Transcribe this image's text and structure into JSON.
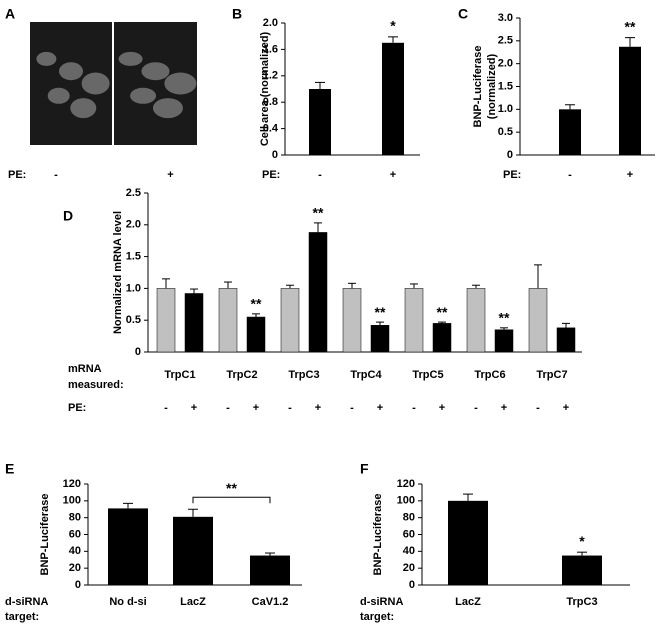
{
  "chart_data": [
    {
      "type": "image",
      "panel": "A",
      "xlabel": "PE:",
      "categories": [
        "-",
        "+"
      ]
    },
    {
      "type": "bar",
      "panel": "B",
      "ylabel": [
        "Cell area (normalized)"
      ],
      "xlabel": [
        "PE:"
      ],
      "categories": [
        "-",
        "+"
      ],
      "color": "#000000",
      "values": [
        1.0,
        1.7
      ],
      "errors": [
        0.1,
        0.09
      ],
      "annotations": [
        {
          "index": 1,
          "text": "*"
        }
      ],
      "ylim": [
        0,
        2
      ],
      "yticks": [
        0,
        0.4,
        0.8,
        1.2,
        1.6,
        {
          "value": 2,
          "label": "2.0"
        }
      ]
    },
    {
      "type": "bar",
      "panel": "C",
      "ylabel": [
        "BNP-Luciferase",
        "(normalized)"
      ],
      "xlabel": [
        "PE:"
      ],
      "categories": [
        "-",
        "+"
      ],
      "color": "#000000",
      "values": [
        1.0,
        2.37
      ],
      "errors": [
        0.1,
        0.2
      ],
      "annotations": [
        {
          "index": 1,
          "text": "**"
        }
      ],
      "ylim": [
        0,
        3
      ],
      "yticks": [
        0,
        0.5,
        {
          "value": 1,
          "label": "1.0"
        },
        1.5,
        {
          "value": 2,
          "label": "2.0"
        },
        2.5,
        {
          "value": 3,
          "label": "3.0"
        }
      ]
    },
    {
      "type": "grouped-bar",
      "panel": "D",
      "ylabel": [
        "Normalized mRNA level"
      ],
      "xlabel": [
        "mRNA",
        "measured:"
      ],
      "group_label": "PE:",
      "categories": [
        "TrpC1",
        "TrpC2",
        "TrpC3",
        "TrpC4",
        "TrpC5",
        "TrpC6",
        "TrpC7"
      ],
      "series": [
        {
          "name": "-",
          "color": "#c0c0c0",
          "values": [
            1.0,
            1.0,
            1.0,
            1.0,
            1.0,
            1.0,
            1.0
          ],
          "errors": [
            0.15,
            0.1,
            0.05,
            0.08,
            0.07,
            0.05,
            0.37
          ]
        },
        {
          "name": "+",
          "color": "#000000",
          "values": [
            0.92,
            0.55,
            1.88,
            0.42,
            0.45,
            0.35,
            0.38
          ],
          "errors": [
            0.07,
            0.05,
            0.15,
            0.05,
            0.02,
            0.03,
            0.07
          ]
        }
      ],
      "annotations": [
        {
          "series": 1,
          "index": 1,
          "text": "**"
        },
        {
          "series": 1,
          "index": 2,
          "text": "**"
        },
        {
          "series": 1,
          "index": 3,
          "text": "**"
        },
        {
          "series": 1,
          "index": 4,
          "text": "**"
        },
        {
          "series": 1,
          "index": 5,
          "text": "**"
        }
      ],
      "ylim": [
        0,
        2.5
      ],
      "yticks": [
        0,
        0.5,
        {
          "value": 1,
          "label": "1.0"
        },
        1.5,
        {
          "value": 2,
          "label": "2.0"
        },
        2.5
      ]
    },
    {
      "type": "bar",
      "panel": "E",
      "ylabel": [
        "BNP-Luciferase"
      ],
      "xlabel": [
        "d-siRNA",
        "target:"
      ],
      "categories": [
        "No d-si",
        "LacZ",
        "CaV1.2"
      ],
      "color": "#000000",
      "values": [
        91,
        81,
        35
      ],
      "errors": [
        6,
        9,
        3
      ],
      "brackets": [
        {
          "from": 1,
          "to": 2,
          "text": "**"
        }
      ],
      "ylim": [
        0,
        120
      ],
      "yticks": [
        0,
        20,
        40,
        60,
        80,
        100,
        120
      ]
    },
    {
      "type": "bar",
      "panel": "F",
      "ylabel": [
        "BNP-Luciferase"
      ],
      "xlabel": [
        "d-siRNA",
        "target:"
      ],
      "categories": [
        "LacZ",
        "TrpC3"
      ],
      "color": "#000000",
      "values": [
        100,
        35
      ],
      "errors": [
        8,
        4
      ],
      "annotations": [
        {
          "index": 1,
          "text": "*"
        }
      ],
      "ylim": [
        0,
        120
      ],
      "yticks": [
        0,
        20,
        40,
        60,
        80,
        100,
        120
      ]
    }
  ]
}
